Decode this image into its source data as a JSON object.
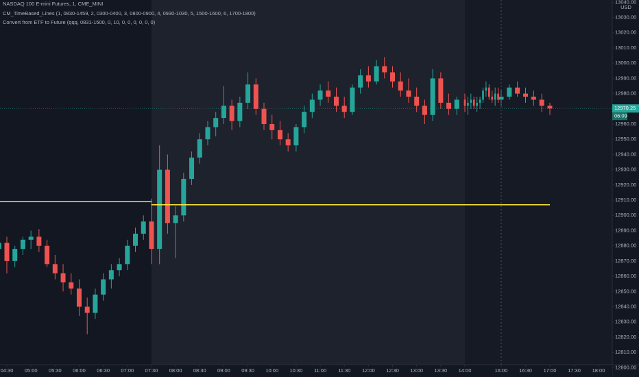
{
  "chart_data": {
    "type": "candlestick",
    "title": "NASDAQ 100 E-mini Futures, 1, CME_MINI",
    "indicators": [
      "CM_TimeBased_Lines (1, 0830-1459, 2, 0300-0400, 3, 0800-0900, 4, 0930-1030, 5, 1500-1600, 6, 1700-1800)",
      "Convert from ETF to Future (qqq, 0831-1500, 0, 10, 0, 0, 0, 0, 0, 0)"
    ],
    "currency": "USD",
    "up_color": "#26a69a",
    "down_color": "#ef5350",
    "grid": false,
    "session": {
      "from": "07:30",
      "to": "14:00",
      "color": "#1e222d"
    },
    "x": [
      "04:20",
      "04:30",
      "04:40",
      "04:50",
      "05:00",
      "05:10",
      "05:20",
      "05:30",
      "05:40",
      "05:50",
      "06:00",
      "06:10",
      "06:20",
      "06:30",
      "06:40",
      "06:50",
      "07:00",
      "07:10",
      "07:20",
      "07:30",
      "07:40",
      "07:50",
      "08:00",
      "08:10",
      "08:20",
      "08:30",
      "08:40",
      "08:50",
      "09:00",
      "09:10",
      "09:20",
      "09:30",
      "09:40",
      "09:50",
      "10:00",
      "10:10",
      "10:20",
      "10:30",
      "10:40",
      "10:50",
      "11:00",
      "11:10",
      "11:20",
      "11:30",
      "11:40",
      "11:50",
      "12:00",
      "12:10",
      "12:20",
      "12:30",
      "12:40",
      "12:50",
      "13:00",
      "13:10",
      "13:20",
      "13:30",
      "13:40",
      "13:50",
      "14:00",
      "14:10",
      "14:20",
      "14:30",
      "14:40",
      "14:50",
      "15:00",
      "15:10",
      "15:20",
      "15:30",
      "15:40",
      "15:50",
      "16:00",
      "16:10",
      "16:20",
      "16:30",
      "16:40",
      "16:50",
      "17:00"
    ],
    "open": [
      12878,
      12882,
      12870,
      12878,
      12884,
      12886,
      12880,
      12868,
      12862,
      12856,
      12852,
      12840,
      12836,
      12848,
      12858,
      12864,
      12868,
      12880,
      12888,
      12896,
      12878,
      12930,
      12895,
      12900,
      12924,
      12938,
      12950,
      12958,
      12964,
      12972,
      12962,
      12974,
      12986,
      12970,
      12960,
      12956,
      12950,
      12946,
      12958,
      12968,
      12976,
      12982,
      12978,
      12972,
      12968,
      12984,
      12992,
      12988,
      12998,
      12994,
      12988,
      12982,
      12978,
      12972,
      12966,
      12990,
      12974,
      12970,
      12976,
      12972,
      12974,
      12976,
      12972,
      12974,
      12976,
      12982,
      12984,
      12978,
      12976,
      12980,
      12976,
      12978,
      12984,
      12980,
      12978,
      12976,
      12972
    ],
    "high": [
      12884,
      12886,
      12880,
      12886,
      12890,
      12891,
      12884,
      12874,
      12868,
      12862,
      12858,
      12846,
      12852,
      12862,
      12868,
      12872,
      12884,
      12892,
      12900,
      12911,
      12946,
      12940,
      12906,
      12928,
      12942,
      12954,
      12962,
      12968,
      12985,
      12976,
      12978,
      12994,
      12990,
      12974,
      12966,
      12962,
      12954,
      12960,
      12972,
      12980,
      12986,
      12988,
      12984,
      12978,
      12986,
      12996,
      12998,
      13002,
      13004,
      12998,
      12994,
      12990,
      12984,
      12976,
      12996,
      12994,
      12980,
      12978,
      12980,
      12978,
      12980,
      12978,
      12978,
      12978,
      12984,
      12988,
      12986,
      12982,
      12984,
      12984,
      12982,
      12986,
      12988,
      12984,
      12982,
      12980,
      12974
    ],
    "low": [
      12872,
      12862,
      12866,
      12874,
      12878,
      12876,
      12866,
      12858,
      12850,
      12848,
      12834,
      12822,
      12832,
      12844,
      12852,
      12860,
      12864,
      12876,
      12884,
      12868,
      12868,
      12888,
      12872,
      12896,
      12920,
      12934,
      12946,
      12952,
      12960,
      12956,
      12958,
      12970,
      12966,
      12956,
      12950,
      12946,
      12942,
      12942,
      12954,
      12964,
      12972,
      12974,
      12968,
      12964,
      12966,
      12980,
      12984,
      12986,
      12990,
      12984,
      12978,
      12974,
      12968,
      12960,
      12962,
      12970,
      12966,
      12966,
      12968,
      12966,
      12970,
      12970,
      12968,
      12970,
      12974,
      12978,
      12976,
      12974,
      12972,
      12974,
      12972,
      12976,
      12978,
      12974,
      12972,
      12968,
      12966
    ],
    "close": [
      12882,
      12870,
      12878,
      12884,
      12886,
      12880,
      12868,
      12862,
      12856,
      12852,
      12840,
      12836,
      12848,
      12858,
      12864,
      12868,
      12880,
      12888,
      12896,
      12878,
      12930,
      12895,
      12900,
      12924,
      12938,
      12950,
      12958,
      12964,
      12972,
      12962,
      12974,
      12986,
      12970,
      12960,
      12956,
      12950,
      12946,
      12958,
      12968,
      12976,
      12982,
      12978,
      12972,
      12968,
      12984,
      12992,
      12988,
      12998,
      12994,
      12988,
      12982,
      12978,
      12972,
      12966,
      12990,
      12974,
      12970,
      12976,
      12972,
      12974,
      12976,
      12972,
      12974,
      12976,
      12982,
      12984,
      12978,
      12976,
      12980,
      12976,
      12978,
      12984,
      12980,
      12978,
      12976,
      12972,
      12970.25
    ],
    "levels": [
      {
        "value": 12909,
        "from": "04:20",
        "to": "07:30",
        "color": "#ffeb3b"
      },
      {
        "value": 12907,
        "from": "07:30",
        "to": "17:00",
        "color": "#ffeb3b"
      }
    ],
    "last_price": 12970.25,
    "countdown": "06:09",
    "ylim": [
      12797,
      13041.5
    ],
    "yticks": [
      {
        "value": 12800,
        "label": "12800.00"
      },
      {
        "value": 12810,
        "label": "12810.00"
      },
      {
        "value": 12820,
        "label": "12820.00"
      },
      {
        "value": 12830,
        "label": "12830.00"
      },
      {
        "value": 12840,
        "label": "12840.00"
      },
      {
        "value": 12850,
        "label": "12850.00"
      },
      {
        "value": 12860,
        "label": "12860.00"
      },
      {
        "value": 12870,
        "label": "12870.00"
      },
      {
        "value": 12880,
        "label": "12880.00"
      },
      {
        "value": 12890,
        "label": "12890.00"
      },
      {
        "value": 12900,
        "label": "12900.00"
      },
      {
        "value": 12910,
        "label": "12910.00"
      },
      {
        "value": 12920,
        "label": "12920.00"
      },
      {
        "value": 12930,
        "label": "12930.00"
      },
      {
        "value": 12940,
        "label": "12940.00"
      },
      {
        "value": 12950,
        "label": "12950.00"
      },
      {
        "value": 12960,
        "label": "12960.00"
      },
      {
        "value": 12980,
        "label": "12980.00"
      },
      {
        "value": 12990,
        "label": "12990.00"
      },
      {
        "value": 13000,
        "label": "13000.00"
      },
      {
        "value": 13010,
        "label": "13010.00"
      },
      {
        "value": 13020,
        "label": "13020.00"
      },
      {
        "value": 13030,
        "label": "13030.00"
      },
      {
        "value": 13040,
        "label": "13040.00"
      }
    ],
    "xticks": [
      "04:30",
      "05:00",
      "05:30",
      "06:00",
      "06:30",
      "07:00",
      "07:30",
      "08:00",
      "08:30",
      "09:00",
      "09:30",
      "10:00",
      "10:30",
      "11:00",
      "11:30",
      "12:00",
      "12:30",
      "13:00",
      "13:30",
      "14:00",
      "16:00",
      "16:30",
      "17:00",
      "17:30",
      "18:00"
    ]
  }
}
